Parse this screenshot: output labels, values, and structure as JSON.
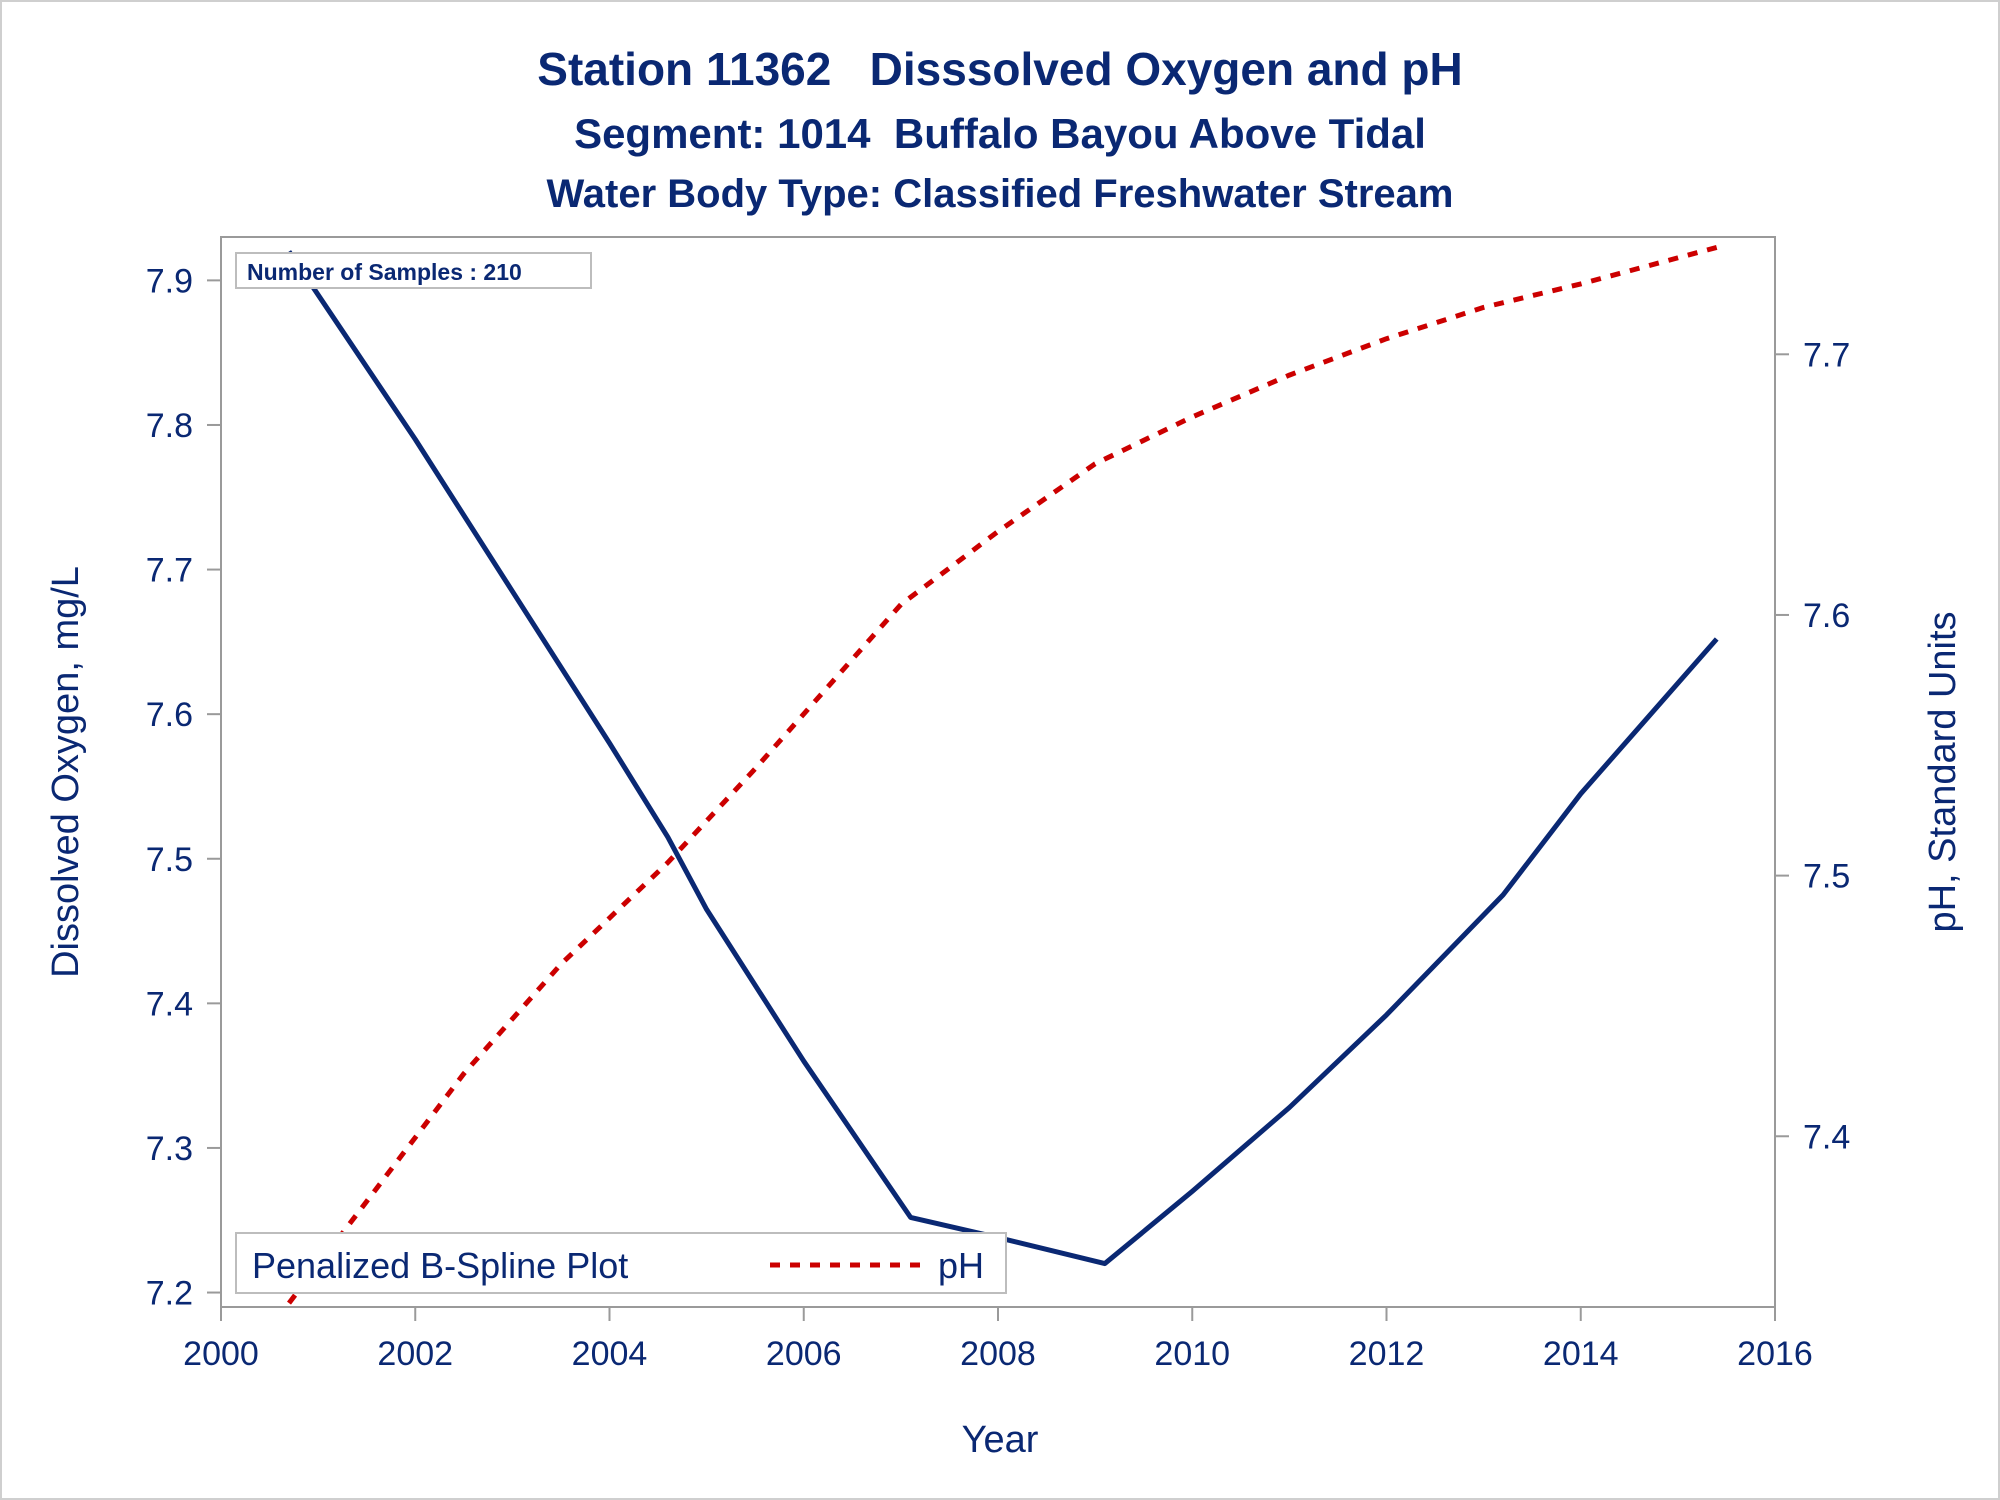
{
  "colors": {
    "text": "#0a2873",
    "do_line": "#0a2873",
    "ph_line": "#cc0000",
    "axis": "#9a9a9a",
    "frame": "#cfcfcf"
  },
  "titles": {
    "line1": "Station 11362   Disssolved Oxygen and pH",
    "line2": "Segment: 1014  Buffalo Bayou Above Tidal",
    "line3": "Water Body Type: Classified Freshwater Stream"
  },
  "inset_label": "Number of Samples : 210",
  "legend": {
    "title": "Penalized B-Spline Plot",
    "entry": "pH"
  },
  "chart_data": {
    "type": "line",
    "xlabel": "Year",
    "ylabel": "Dissolved Oxygen, mg/L",
    "y2label": "pH, Standard Units",
    "xlim": [
      2000,
      2016
    ],
    "ylim": [
      7.19,
      7.93
    ],
    "y2lim": [
      7.3345,
      7.745
    ],
    "x_ticks": [
      2000,
      2002,
      2004,
      2006,
      2008,
      2010,
      2012,
      2014,
      2016
    ],
    "y_ticks": [
      7.2,
      7.3,
      7.4,
      7.5,
      7.6,
      7.7,
      7.8,
      7.9
    ],
    "y2_ticks": [
      7.4,
      7.5,
      7.6,
      7.7
    ],
    "grid": false,
    "legend_position": "bottom-left",
    "series": [
      {
        "name": "",
        "axis": "left",
        "style": "solid",
        "x": [
          2000.7,
          2002.0,
          2003.0,
          2004.0,
          2004.6,
          2005.0,
          2006.0,
          2007.1,
          2008.0,
          2009.1,
          2010.0,
          2011.0,
          2012.0,
          2013.2,
          2014.0,
          2015.4
        ],
        "values": [
          7.92,
          7.79,
          7.685,
          7.58,
          7.515,
          7.465,
          7.36,
          7.252,
          7.238,
          7.22,
          7.27,
          7.328,
          7.392,
          7.475,
          7.545,
          7.652
        ]
      },
      {
        "name": "pH",
        "axis": "right",
        "style": "dashed",
        "x": [
          2000.7,
          2001.5,
          2002.5,
          2003.5,
          2004.6,
          2005.5,
          2006.5,
          2007.0,
          2008.0,
          2009.0,
          2010.0,
          2011.0,
          2012.0,
          2013.0,
          2014.0,
          2015.4
        ],
        "values": [
          7.336,
          7.375,
          7.424,
          7.466,
          7.505,
          7.541,
          7.583,
          7.604,
          7.632,
          7.658,
          7.676,
          7.692,
          7.706,
          7.718,
          7.727,
          7.741
        ]
      }
    ]
  }
}
